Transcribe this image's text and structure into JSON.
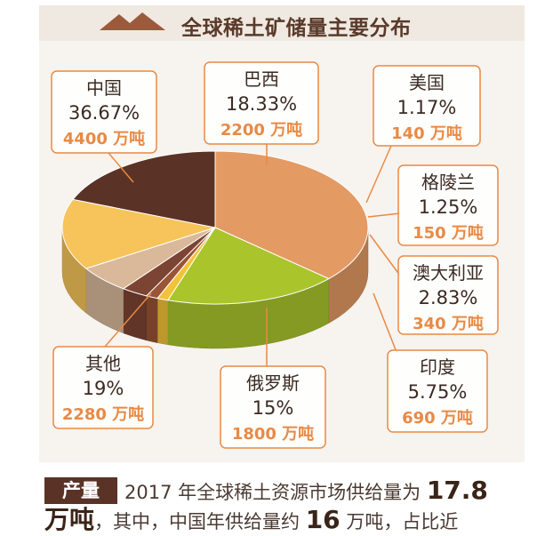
{
  "title": "全球稀土矿储量主要分布",
  "chart_data": {
    "type": "pie",
    "unit": "万吨",
    "slices": [
      {
        "name": "中国",
        "percent": "36.67%",
        "amount": "4400",
        "value": 4400,
        "color": "#e49a63"
      },
      {
        "name": "巴西",
        "percent": "18.33%",
        "amount": "2200",
        "value": 2200,
        "color": "#a9c52b"
      },
      {
        "name": "美国",
        "percent": "1.17%",
        "amount": "140",
        "value": 140,
        "color": "#f2c33a"
      },
      {
        "name": "格陵兰",
        "percent": "1.25%",
        "amount": "150",
        "value": 150,
        "color": "#9a5436"
      },
      {
        "name": "澳大利亚",
        "percent": "2.83%",
        "amount": "340",
        "value": 340,
        "color": "#7c4433"
      },
      {
        "name": "印度",
        "percent": "5.75%",
        "amount": "690",
        "value": 690,
        "color": "#d9b99a"
      },
      {
        "name": "俄罗斯",
        "percent": "15%",
        "amount": "1800",
        "value": 1800,
        "color": "#f6c45a"
      },
      {
        "name": "其他",
        "percent": "19%",
        "amount": "2280",
        "value": 2280,
        "color": "#5b3226"
      }
    ]
  },
  "production": {
    "badge": "产量",
    "line1_text": "2017 年全球稀土资源市场供给量为",
    "line1_value": "17.8",
    "line2_unit": "万吨",
    "line2_text": "，其中，中国年供给量约",
    "line2_value": "16",
    "line2_tail": "万吨，占比近"
  }
}
